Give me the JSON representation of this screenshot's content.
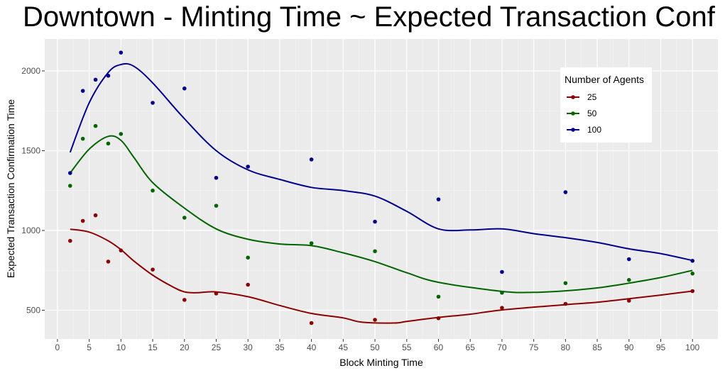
{
  "chart_data": {
    "type": "scatter",
    "title": "Downtown - Minting Time ~ Expected Transaction Conf",
    "xlabel": "Block Minting Time",
    "ylabel": "Expected Transaction Confirmation Time",
    "xlim": [
      -2,
      104
    ],
    "ylim": [
      320,
      2200
    ],
    "x_ticks": [
      0,
      5,
      10,
      15,
      20,
      25,
      30,
      35,
      40,
      45,
      50,
      55,
      60,
      65,
      70,
      75,
      80,
      85,
      90,
      95,
      100
    ],
    "y_ticks": [
      500,
      1000,
      1500,
      2000
    ],
    "grid": true,
    "legend": {
      "title": "Number of Agents",
      "position": "top-right"
    },
    "series": [
      {
        "name": "25",
        "color": "#8b0000",
        "points": [
          [
            2,
            935
          ],
          [
            4,
            1060
          ],
          [
            6,
            1095
          ],
          [
            8,
            805
          ],
          [
            10,
            875
          ],
          [
            15,
            755
          ],
          [
            20,
            565
          ],
          [
            25,
            605
          ],
          [
            30,
            660
          ],
          [
            40,
            420
          ],
          [
            50,
            440
          ],
          [
            60,
            450
          ],
          [
            70,
            515
          ],
          [
            80,
            540
          ],
          [
            90,
            560
          ],
          [
            100,
            620
          ]
        ],
        "smooth": [
          [
            2,
            1008
          ],
          [
            5,
            990
          ],
          [
            8,
            935
          ],
          [
            10,
            880
          ],
          [
            12,
            810
          ],
          [
            15,
            720
          ],
          [
            18,
            650
          ],
          [
            20,
            615
          ],
          [
            22,
            610
          ],
          [
            25,
            615
          ],
          [
            30,
            585
          ],
          [
            35,
            530
          ],
          [
            40,
            480
          ],
          [
            45,
            452
          ],
          [
            48,
            425
          ],
          [
            53,
            420
          ],
          [
            55,
            430
          ],
          [
            60,
            455
          ],
          [
            65,
            475
          ],
          [
            70,
            502
          ],
          [
            80,
            535
          ],
          [
            85,
            550
          ],
          [
            90,
            572
          ],
          [
            95,
            595
          ],
          [
            100,
            620
          ]
        ]
      },
      {
        "name": "50",
        "color": "#006400",
        "points": [
          [
            2,
            1280
          ],
          [
            4,
            1575
          ],
          [
            6,
            1655
          ],
          [
            8,
            1545
          ],
          [
            10,
            1605
          ],
          [
            15,
            1250
          ],
          [
            20,
            1080
          ],
          [
            25,
            1155
          ],
          [
            30,
            830
          ],
          [
            40,
            920
          ],
          [
            50,
            870
          ],
          [
            60,
            585
          ],
          [
            70,
            610
          ],
          [
            80,
            670
          ],
          [
            90,
            690
          ],
          [
            100,
            730
          ]
        ],
        "smooth": [
          [
            2,
            1360
          ],
          [
            5,
            1510
          ],
          [
            8,
            1590
          ],
          [
            10,
            1565
          ],
          [
            12,
            1460
          ],
          [
            15,
            1300
          ],
          [
            20,
            1140
          ],
          [
            25,
            1010
          ],
          [
            30,
            945
          ],
          [
            35,
            915
          ],
          [
            40,
            905
          ],
          [
            45,
            860
          ],
          [
            50,
            805
          ],
          [
            55,
            735
          ],
          [
            60,
            675
          ],
          [
            70,
            618
          ],
          [
            75,
            612
          ],
          [
            80,
            622
          ],
          [
            85,
            640
          ],
          [
            90,
            670
          ],
          [
            95,
            705
          ],
          [
            100,
            750
          ]
        ]
      },
      {
        "name": "100",
        "color": "#00008b",
        "points": [
          [
            2,
            1360
          ],
          [
            4,
            1875
          ],
          [
            6,
            1945
          ],
          [
            8,
            1970
          ],
          [
            10,
            2115
          ],
          [
            15,
            1800
          ],
          [
            20,
            1890
          ],
          [
            25,
            1330
          ],
          [
            30,
            1400
          ],
          [
            40,
            1445
          ],
          [
            50,
            1055
          ],
          [
            60,
            1195
          ],
          [
            70,
            740
          ],
          [
            80,
            1240
          ],
          [
            90,
            820
          ],
          [
            100,
            810
          ]
        ],
        "smooth": [
          [
            2,
            1490
          ],
          [
            5,
            1800
          ],
          [
            8,
            1990
          ],
          [
            10,
            2040
          ],
          [
            12,
            2030
          ],
          [
            15,
            1925
          ],
          [
            20,
            1700
          ],
          [
            25,
            1500
          ],
          [
            30,
            1380
          ],
          [
            35,
            1320
          ],
          [
            40,
            1270
          ],
          [
            45,
            1250
          ],
          [
            50,
            1215
          ],
          [
            55,
            1120
          ],
          [
            60,
            1010
          ],
          [
            65,
            1003
          ],
          [
            70,
            1010
          ],
          [
            75,
            980
          ],
          [
            80,
            955
          ],
          [
            85,
            925
          ],
          [
            90,
            885
          ],
          [
            95,
            855
          ],
          [
            100,
            812
          ]
        ]
      }
    ]
  }
}
